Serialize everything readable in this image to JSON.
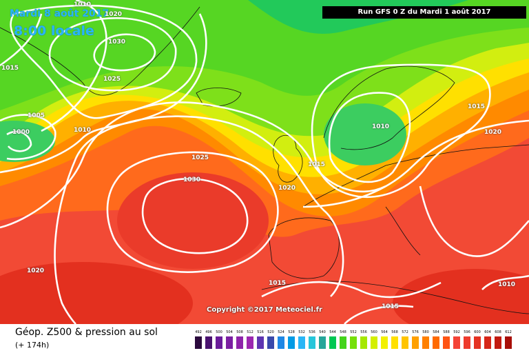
{
  "header": {
    "date": "Mardi 8 août 2017",
    "time": "8:00 locale",
    "run": "Run GFS 0 Z du Mardi 1 août 2017"
  },
  "copyright": "Copyright ©2017 Meteociel.fr",
  "footer": {
    "title": "Géop. Z500 & pression au sol",
    "subtitle": "(+ 174h)"
  },
  "pressure_labels": [
    {
      "text": "1010"
    },
    {
      "text": "1020"
    },
    {
      "text": "1030"
    },
    {
      "text": "1015"
    },
    {
      "text": "1025"
    },
    {
      "text": "1005"
    },
    {
      "text": "1000"
    },
    {
      "text": "1010"
    },
    {
      "text": "1025"
    },
    {
      "text": "1030"
    },
    {
      "text": "1020"
    },
    {
      "text": "1015"
    },
    {
      "text": "1010"
    },
    {
      "text": "1015"
    },
    {
      "text": "1020"
    },
    {
      "text": "1020"
    },
    {
      "text": "1015"
    },
    {
      "text": "1015"
    },
    {
      "text": "1010"
    }
  ],
  "scale": [
    {
      "label": "492",
      "color": "#2b0a3d"
    },
    {
      "label": "496",
      "color": "#4a1270"
    },
    {
      "label": "500",
      "color": "#6a1b9a"
    },
    {
      "label": "504",
      "color": "#7b1fa2"
    },
    {
      "label": "508",
      "color": "#8e24aa"
    },
    {
      "label": "512",
      "color": "#9c27b0"
    },
    {
      "label": "516",
      "color": "#5e35b1"
    },
    {
      "label": "520",
      "color": "#3949ab"
    },
    {
      "label": "524",
      "color": "#1e88e5"
    },
    {
      "label": "528",
      "color": "#039be5"
    },
    {
      "label": "532",
      "color": "#29b6f6"
    },
    {
      "label": "536",
      "color": "#26c6da"
    },
    {
      "label": "540",
      "color": "#26a69a"
    },
    {
      "label": "544",
      "color": "#00c853"
    },
    {
      "label": "548",
      "color": "#43d41a"
    },
    {
      "label": "552",
      "color": "#76e00a"
    },
    {
      "label": "556",
      "color": "#a5e800"
    },
    {
      "label": "560",
      "color": "#d4ef00"
    },
    {
      "label": "564",
      "color": "#f2f000"
    },
    {
      "label": "568",
      "color": "#ffe000"
    },
    {
      "label": "572",
      "color": "#ffc400"
    },
    {
      "label": "576",
      "color": "#ffa000"
    },
    {
      "label": "580",
      "color": "#ff8000"
    },
    {
      "label": "584",
      "color": "#ff6a00"
    },
    {
      "label": "588",
      "color": "#ff5414"
    },
    {
      "label": "592",
      "color": "#f44336"
    },
    {
      "label": "596",
      "color": "#ee3a2c"
    },
    {
      "label": "600",
      "color": "#e53222"
    },
    {
      "label": "604",
      "color": "#d62618"
    },
    {
      "label": "608",
      "color": "#c21a10"
    },
    {
      "label": "612",
      "color": "#a80e08"
    }
  ]
}
